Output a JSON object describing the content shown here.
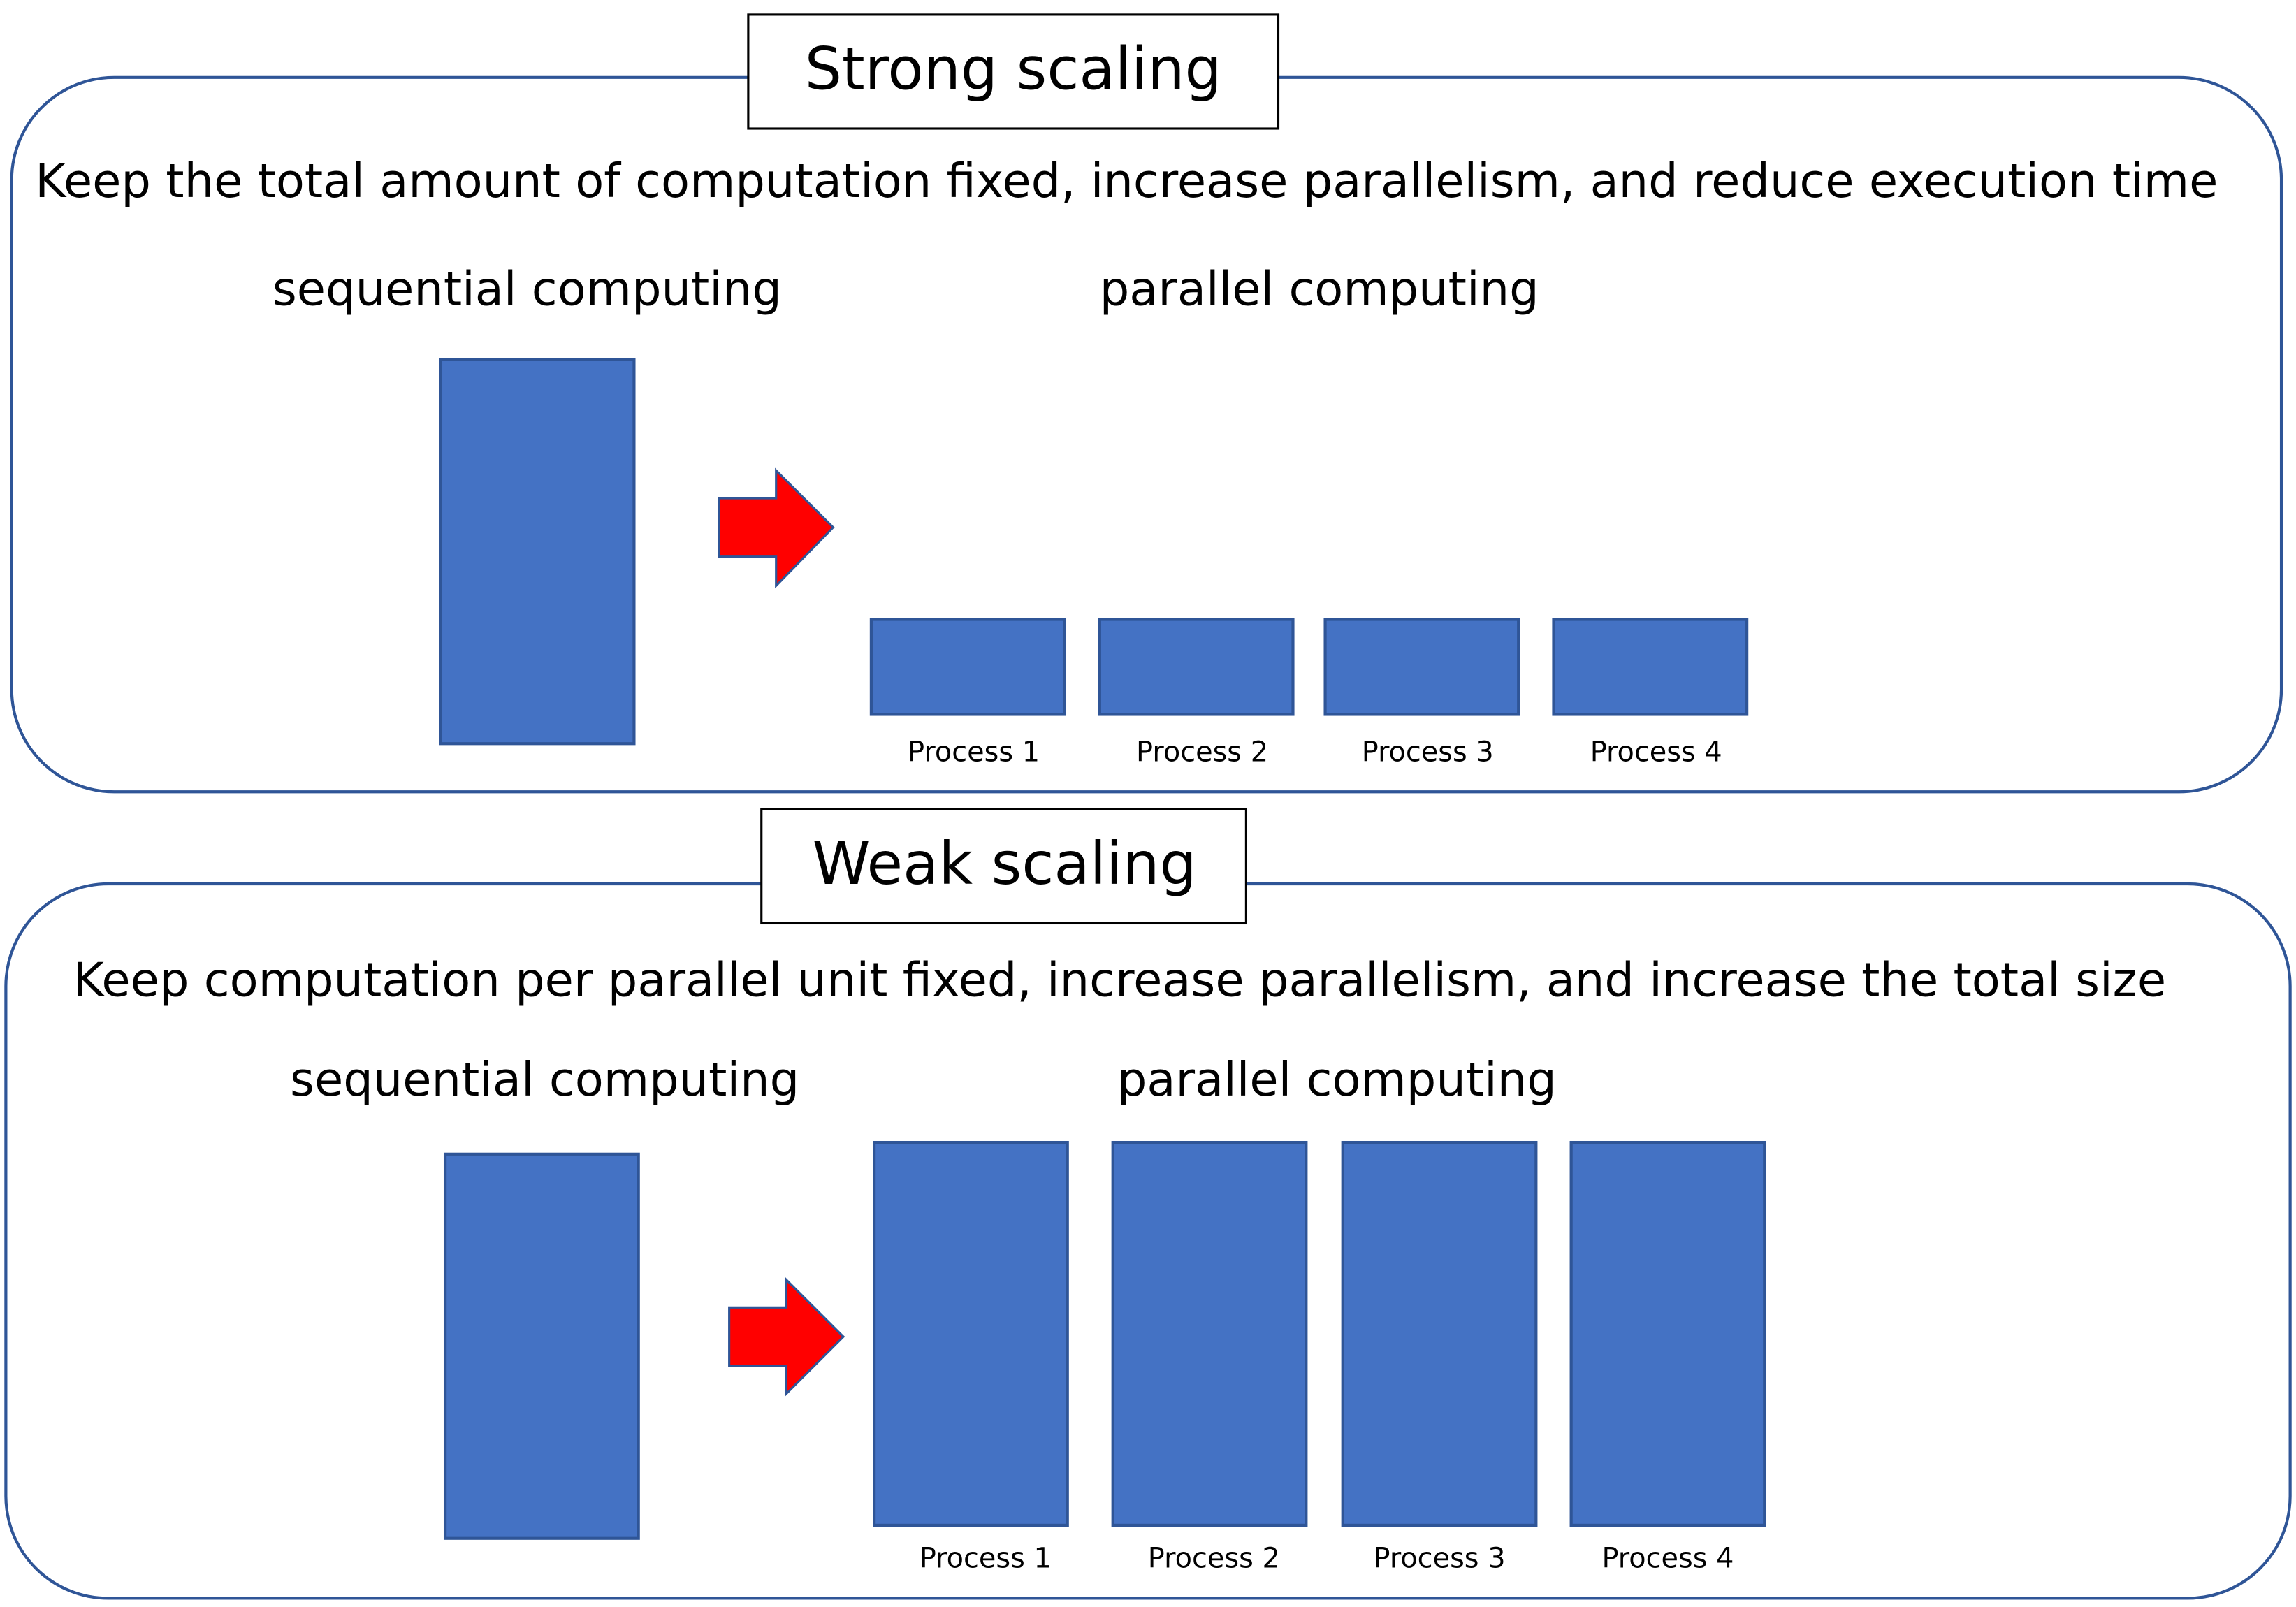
{
  "panels": [
    {
      "title": "Strong scaling",
      "description": "Keep the total amount of computation fixed, increase parallelism, and reduce execution time",
      "sequential_label": "sequential computing",
      "parallel_label": "parallel computing",
      "processes": [
        "Process 1",
        "Process 2",
        "Process 3",
        "Process 4"
      ]
    },
    {
      "title": "Weak scaling",
      "description": "Keep computation per parallel unit fixed, increase parallelism, and increase the total size",
      "sequential_label": "sequential computing",
      "parallel_label": "parallel computing",
      "processes": [
        "Process 1",
        "Process 2",
        "Process 3",
        "Process 4"
      ]
    }
  ]
}
